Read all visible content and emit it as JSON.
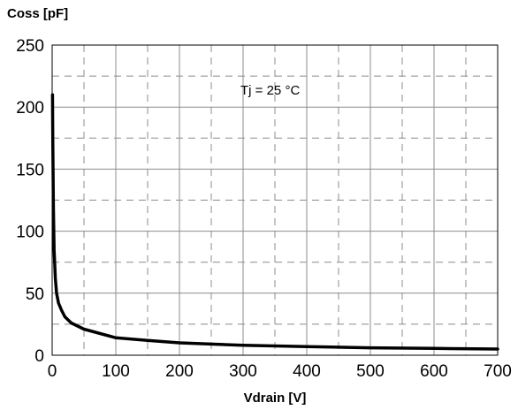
{
  "chart_data": {
    "type": "line",
    "ylabel": "Coss [pF]",
    "xlabel": "Vdrain [V]",
    "annotation": "Tj = 25 °C",
    "xlim": [
      0,
      700
    ],
    "ylim": [
      0,
      250
    ],
    "x_ticks": [
      "0",
      "100",
      "200",
      "300",
      "400",
      "500",
      "600",
      "700"
    ],
    "y_ticks": [
      "0",
      "50",
      "100",
      "150",
      "200",
      "250"
    ],
    "x_tick_values": [
      0,
      100,
      200,
      300,
      400,
      500,
      600,
      700
    ],
    "y_tick_values": [
      0,
      50,
      100,
      150,
      200,
      250
    ],
    "grid": true,
    "grid_style": "solid major, dashed minor",
    "series": [
      {
        "color": "#000000",
        "x": [
          0.5,
          1,
          2,
          3,
          5,
          7,
          10,
          15,
          20,
          30,
          50,
          100,
          150,
          200,
          300,
          400,
          500,
          600,
          700
        ],
        "y": [
          210,
          175,
          120,
          85,
          62,
          50,
          42,
          36,
          31,
          26,
          21,
          14,
          12,
          10,
          8,
          7,
          6,
          5.5,
          5
        ]
      }
    ]
  }
}
